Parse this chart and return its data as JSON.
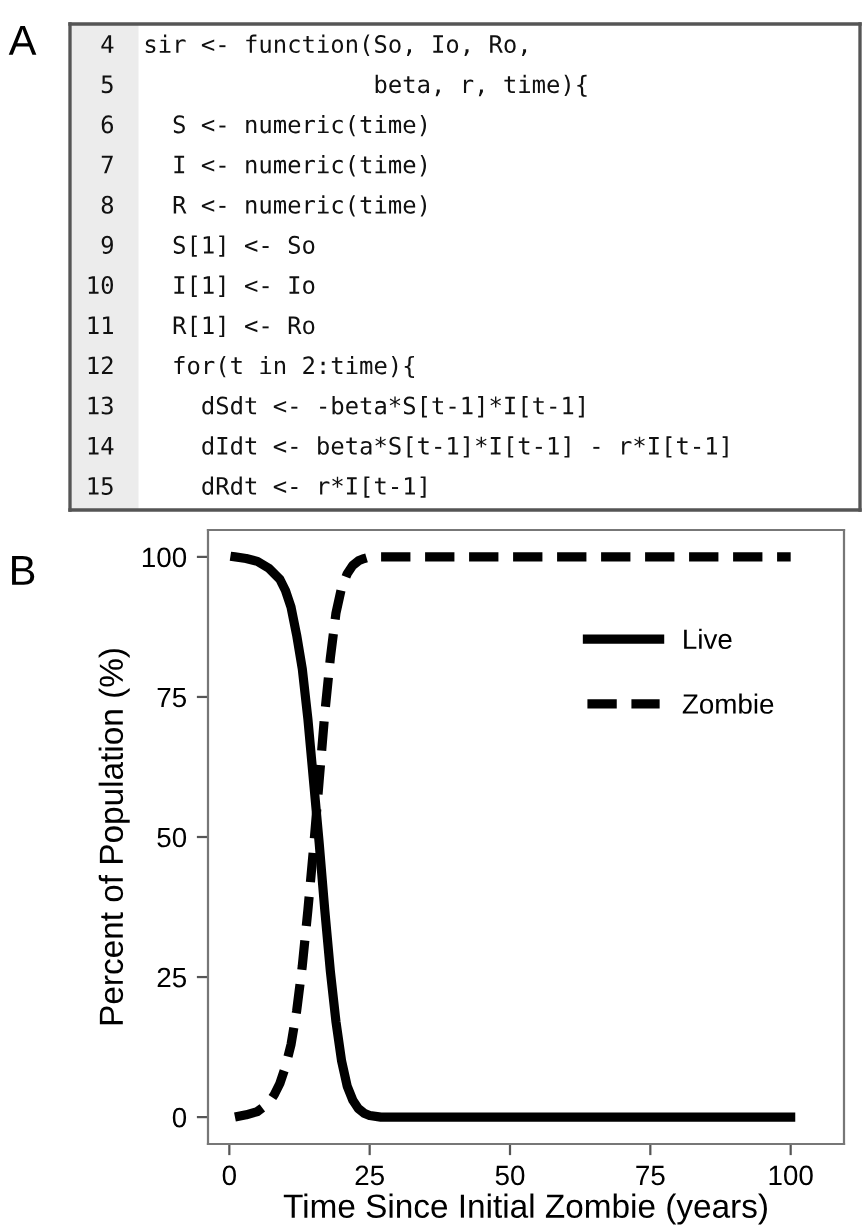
{
  "chart_data": [
    {
      "type": "other",
      "title": "A",
      "annotations": [
        " 4  sir <- function(So, Io, Ro,",
        " 5                  beta, r, time){",
        " 6    S <- numeric(time)",
        " 7    I <- numeric(time)",
        " 8    R <- numeric(time)",
        " 9    S[1] <- So",
        "10    I[1] <- Io",
        "11    R[1] <- Ro",
        "12    for(t in 2:time){",
        "13      dSdt <- -beta*S[t-1]*I[t-1]",
        "14      dIdt <- beta*S[t-1]*I[t-1] - r*I[t-1]",
        "15      dRdt <- r*I[t-1]"
      ]
    },
    {
      "type": "line",
      "title": "B",
      "xlabel": "Time Since Initial Zombie (years)",
      "ylabel": "Percent of Population (%)",
      "xlim": [
        -3.8,
        109.5
      ],
      "ylim": [
        -4.8,
        104.8
      ],
      "xticks": [
        0,
        25,
        50,
        75,
        100
      ],
      "yticks": [
        0,
        25,
        50,
        75,
        100
      ],
      "grid": false,
      "legend": "top right",
      "marker": "none",
      "series": [
        {
          "name": "Live",
          "color": "#000000",
          "line_style": "solid",
          "x": [
            1,
            3,
            5,
            7,
            9,
            10,
            11,
            12,
            13,
            14,
            15,
            16,
            17,
            18,
            19,
            20,
            21,
            22,
            23,
            24,
            25,
            27,
            30,
            40,
            60,
            80,
            100
          ],
          "values": [
            100,
            99.7,
            99.2,
            98,
            96,
            94,
            91,
            86,
            80,
            71,
            60,
            49,
            37,
            26,
            17,
            10,
            5.5,
            3,
            1.5,
            0.7,
            0.3,
            0,
            0,
            0,
            0,
            0,
            0
          ]
        },
        {
          "name": "Zombie",
          "color": "#000000",
          "line_style": "dashed",
          "x": [
            1,
            3,
            5,
            7,
            8,
            9,
            10,
            11,
            12,
            13,
            14,
            15,
            16,
            17,
            18,
            19,
            20,
            21,
            22,
            23,
            24,
            25,
            27,
            30,
            40,
            60,
            80,
            100
          ],
          "values": [
            0,
            0.4,
            1,
            2.5,
            4,
            6,
            9,
            13,
            19,
            27,
            37,
            48,
            60,
            72,
            82,
            90,
            94.5,
            97,
            98.5,
            99.3,
            99.7,
            100,
            100,
            100,
            100,
            100,
            100,
            100
          ]
        }
      ]
    }
  ]
}
